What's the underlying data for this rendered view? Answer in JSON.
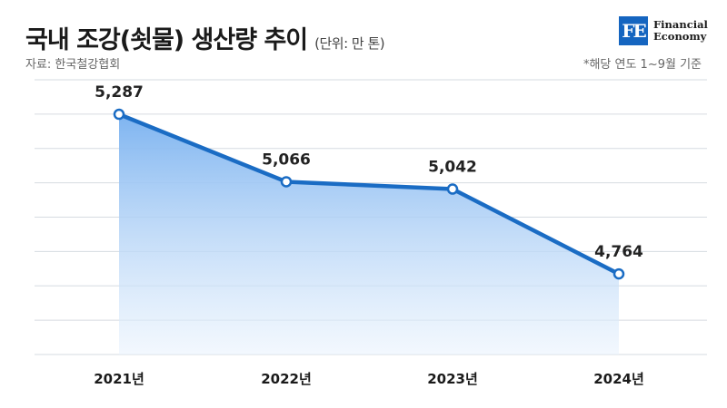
{
  "header": {
    "title": "국내 조강(쇳물) 생산량 추이",
    "unit": "(단위: 만 톤)",
    "source": "자료: 한국철강협회",
    "note": "*해당 연도 1~9월 기준"
  },
  "logo": {
    "mark": "FE",
    "line1": "Financial",
    "line2": "Economy"
  },
  "colors": {
    "line": "#1a6cc4",
    "area_top": "#7eb4f0",
    "area_bottom": "#eaf3fd",
    "grid": "#d6dbe1"
  },
  "chart_data": {
    "type": "area",
    "categories": [
      "2021년",
      "2022년",
      "2023년",
      "2024년"
    ],
    "values": [
      5287,
      5066,
      5042,
      4764
    ],
    "value_labels": [
      "5,287",
      "5,066",
      "5,042",
      "4,764"
    ],
    "ylim": [
      4500,
      5400
    ],
    "grid": true
  }
}
